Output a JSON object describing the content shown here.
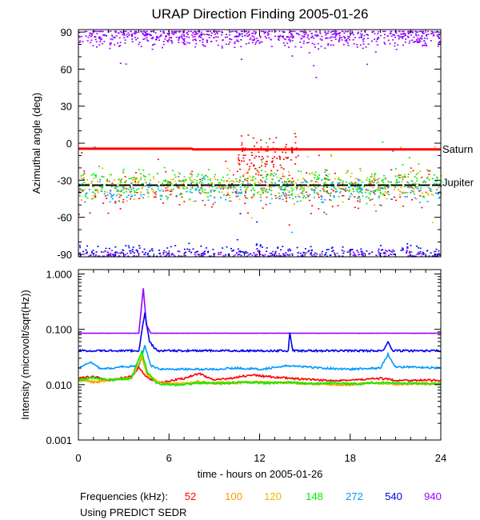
{
  "title": "URAP Direction Finding  2005-01-26",
  "footer": {
    "freq_label": "Frequencies (kHz):",
    "predict": "Using PREDICT SEDR"
  },
  "colors": {
    "f52": "#ff0000",
    "f100": "#ff9900",
    "f120": "#e6bb00",
    "f148": "#00ee00",
    "f272": "#0099ff",
    "f540": "#0000ee",
    "f940": "#9900ff",
    "saturn": "#ff0000",
    "jupiter": "#000000"
  },
  "chart_data": [
    {
      "type": "scatter",
      "ylabel": "Azimuthal angle (deg)",
      "xlim": [
        0,
        24
      ],
      "ylim": [
        -92,
        92
      ],
      "x_ticks": [
        "0",
        "6",
        "12",
        "18",
        "24"
      ],
      "y_ticks": [
        "90",
        "60",
        "30",
        "0",
        "-30",
        "-60",
        "-90"
      ],
      "reference_lines": [
        {
          "name": "Saturn",
          "x": [
            0,
            7.5,
            7.6,
            24
          ],
          "y": [
            -4.5,
            -4.5,
            -5,
            -5
          ]
        },
        {
          "name": "Jupiter",
          "x": [
            0,
            24
          ],
          "y": [
            -34,
            -34
          ]
        }
      ],
      "series": [
        {
          "name": "52",
          "color": "#ff0000",
          "level": -38,
          "spread": 7,
          "count": 220,
          "burst": {
            "x": [
              10.5,
              14.5
            ],
            "y": -12,
            "spread": 9,
            "count": 110
          }
        },
        {
          "name": "100",
          "color": "#ff9900",
          "level": -34,
          "spread": 6,
          "count": 180
        },
        {
          "name": "120",
          "color": "#e6bb00",
          "level": -33,
          "spread": 6,
          "count": 180
        },
        {
          "name": "148",
          "color": "#00ee00",
          "level": -33,
          "spread": 6,
          "count": 420
        },
        {
          "name": "272",
          "color": "#0099ff",
          "level": -37,
          "spread": 5,
          "count": 260
        },
        {
          "name": "540",
          "color": "#0000ee",
          "level": -88,
          "spread": 3,
          "count": 320,
          "high_level": 88
        },
        {
          "name": "940",
          "color": "#9900ff",
          "level": 87,
          "spread": 4,
          "count": 700,
          "low_level": -89
        }
      ]
    },
    {
      "type": "line",
      "xlabel": "time - hours on 2005-01-26",
      "ylabel": "Intensity (microvolt/sqrt(Hz))",
      "xlim": [
        0,
        24
      ],
      "ylim": [
        0.001,
        1.2
      ],
      "yscale": "log",
      "x_ticks": [
        "0",
        "6",
        "12",
        "18",
        "24"
      ],
      "y_ticks": [
        "1.000",
        "0.100",
        "0.010",
        "0.001"
      ],
      "y_tick_values": [
        1.0,
        0.1,
        0.01,
        0.001
      ],
      "series": [
        {
          "name": "940",
          "color": "#9900ff",
          "x": [
            0,
            4.0,
            4.3,
            4.5,
            4.8,
            24
          ],
          "y": [
            0.085,
            0.085,
            0.55,
            0.12,
            0.085,
            0.085
          ]
        },
        {
          "name": "540",
          "color": "#0000ee",
          "x": [
            0,
            4.0,
            4.4,
            4.7,
            5.2,
            13.9,
            14.0,
            14.2,
            20.2,
            20.5,
            20.8,
            24
          ],
          "y": [
            0.041,
            0.041,
            0.2,
            0.06,
            0.041,
            0.041,
            0.09,
            0.041,
            0.041,
            0.06,
            0.041,
            0.041
          ]
        },
        {
          "name": "272",
          "color": "#0099ff",
          "x": [
            0,
            0.8,
            1.5,
            3.0,
            4.0,
            4.4,
            4.8,
            5.5,
            9.0,
            10.5,
            12.0,
            14.0,
            16.0,
            18.0,
            20.0,
            20.5,
            21.0,
            24
          ],
          "y": [
            0.02,
            0.026,
            0.019,
            0.021,
            0.022,
            0.05,
            0.022,
            0.019,
            0.019,
            0.02,
            0.019,
            0.022,
            0.02,
            0.019,
            0.02,
            0.035,
            0.021,
            0.02
          ]
        },
        {
          "name": "52",
          "color": "#ff0000",
          "x": [
            0,
            1.0,
            2.0,
            3.5,
            4.0,
            4.6,
            5.5,
            7.0,
            8.0,
            9.0,
            10.0,
            11.5,
            12.5,
            14.0,
            16.0,
            18.0,
            20.0,
            21.0,
            24
          ],
          "y": [
            0.013,
            0.014,
            0.012,
            0.014,
            0.02,
            0.013,
            0.011,
            0.013,
            0.016,
            0.012,
            0.013,
            0.015,
            0.014,
            0.013,
            0.012,
            0.012,
            0.013,
            0.012,
            0.012
          ]
        },
        {
          "name": "100",
          "color": "#ff9900",
          "x": [
            0,
            1.0,
            2.0,
            3.5,
            4.2,
            4.6,
            5.5,
            7.0,
            8.0,
            9.0,
            10.0,
            12.0,
            14.0,
            16.0,
            18.0,
            19.5,
            21.0,
            24
          ],
          "y": [
            0.012,
            0.011,
            0.012,
            0.013,
            0.03,
            0.014,
            0.0105,
            0.0102,
            0.0115,
            0.0103,
            0.0106,
            0.0112,
            0.0108,
            0.0103,
            0.0098,
            0.0108,
            0.0102,
            0.0104
          ]
        },
        {
          "name": "120",
          "color": "#e6bb00",
          "x": [
            0,
            1.0,
            2.0,
            3.5,
            4.2,
            4.6,
            5.5,
            7.0,
            9.0,
            11.0,
            13.0,
            15.0,
            17.0,
            19.0,
            21.0,
            24
          ],
          "y": [
            0.0125,
            0.0115,
            0.0125,
            0.013,
            0.032,
            0.015,
            0.0105,
            0.0106,
            0.0108,
            0.0112,
            0.0109,
            0.0105,
            0.0103,
            0.0107,
            0.0104,
            0.0106
          ]
        },
        {
          "name": "148",
          "color": "#00ee00",
          "x": [
            0,
            1.0,
            2.0,
            3.5,
            4.2,
            4.6,
            5.2,
            6.5,
            8.0,
            9.5,
            11.0,
            12.5,
            14.0,
            15.5,
            17.0,
            18.5,
            20.0,
            21.5,
            24
          ],
          "y": [
            0.012,
            0.0135,
            0.012,
            0.013,
            0.04,
            0.016,
            0.0105,
            0.0098,
            0.0108,
            0.0104,
            0.0112,
            0.0106,
            0.011,
            0.0104,
            0.0108,
            0.0102,
            0.011,
            0.0106,
            0.0104
          ]
        }
      ]
    }
  ]
}
